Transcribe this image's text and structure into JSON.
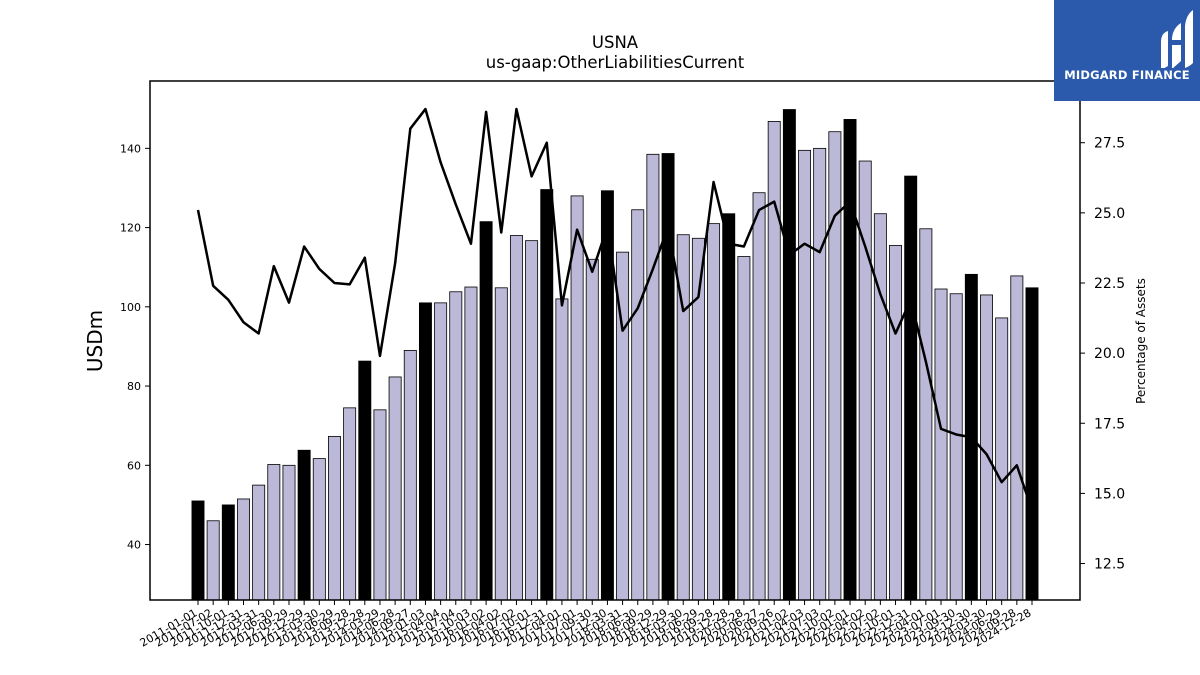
{
  "chart_data": {
    "type": "bar",
    "title": "USNA",
    "subtitle": "us-gaap:OtherLiabilitiesCurrent",
    "ylabel": "USDm",
    "y2label": "Percentage of Assets",
    "ylim": [
      26,
      157
    ],
    "y2lim": [
      11.2,
      29.7
    ],
    "yticks": [
      40,
      60,
      80,
      100,
      120,
      140
    ],
    "y2ticks": [
      12.5,
      15.0,
      17.5,
      20.0,
      22.5,
      25.0,
      27.5
    ],
    "bar_color": "#bcb8d8",
    "highlight_color": "#000000",
    "line_color": "#000000",
    "categories": [
      "2011-01-01",
      "2011-07-02",
      "2011-10-01",
      "2011-12-31",
      "2012-03-31",
      "2012-06-30",
      "2012-09-29",
      "2012-12-29",
      "2013-03-30",
      "2013-06-29",
      "2013-09-28",
      "2013-12-28",
      "2014-03-29",
      "2014-06-28",
      "2014-09-27",
      "2015-01-03",
      "2015-04-04",
      "2015-07-04",
      "2015-10-03",
      "2016-01-02",
      "2016-04-02",
      "2016-07-02",
      "2016-10-01",
      "2016-12-31",
      "2017-04-01",
      "2017-07-01",
      "2017-09-30",
      "2017-12-30",
      "2018-03-31",
      "2018-06-30",
      "2018-09-29",
      "2018-12-29",
      "2019-03-30",
      "2019-06-29",
      "2019-09-28",
      "2019-12-28",
      "2020-03-28",
      "2020-06-27",
      "2020-09-26",
      "2021-01-02",
      "2021-04-03",
      "2021-07-03",
      "2021-10-02",
      "2022-01-01",
      "2022-04-02",
      "2022-07-02",
      "2022-10-01",
      "2022-12-31",
      "2023-04-01",
      "2023-07-01",
      "2023-09-30",
      "2023-12-30",
      "2024-03-30",
      "2024-06-29",
      "2024-09-28",
      "2024-12-28"
    ],
    "tick_labels": [
      "2011-01-01",
      "2011-07-02",
      "2011-10-01",
      "2011-12-31",
      "2012-03-31",
      "2012-06-30",
      "2012-09-29",
      "2012-12-29",
      "2013-03-30",
      "2013-06-29",
      "2013-09-28",
      "2013-12-28",
      "2014-03-29",
      "2014-06-28",
      "2014-09-27",
      "2015-01-03",
      "2015-04-04",
      "2015-07-04",
      "2015-10-03",
      "2016-01-02",
      "2016-04-02",
      "2016-07-02",
      "2016-10-01",
      "2016-12-31",
      "2017-04-01",
      "2017-07-01",
      "2017-09-30",
      "2017-12-30",
      "2018-03-31",
      "2018-06-30",
      "2018-09-29",
      "2018-12-29",
      "2019-03-30",
      "2019-06-29",
      "2019-09-28",
      "2019-12-28",
      "2020-03-28",
      "2020-06-27",
      "2020-09-26",
      "2021-01-02",
      "2021-04-03",
      "2021-07-03",
      "2021-10-02",
      "2022-01-01",
      "2022-04-02",
      "2022-07-02",
      "2022-10-01",
      "2022-12-31",
      "2023-04-01",
      "2023-07-01",
      "2023-09-30",
      "2023-12-30",
      "2024-03-30",
      "2024-06-29",
      "2024-09-28",
      "2024-12-28"
    ],
    "values": [
      51.0,
      46.0,
      50.0,
      51.5,
      55.0,
      60.2,
      60.0,
      63.8,
      61.7,
      67.3,
      74.5,
      86.3,
      74.0,
      82.3,
      89.0,
      101.0,
      101.0,
      103.8,
      105.0,
      121.5,
      104.8,
      118.0,
      116.7,
      129.6,
      102.0,
      128.0,
      112.0,
      129.3,
      113.8,
      124.5,
      138.5,
      138.7,
      118.2,
      117.3,
      121.0,
      123.5,
      112.7,
      128.8,
      146.8,
      149.8,
      139.5,
      140.0,
      144.2,
      147.3,
      136.8,
      123.5,
      115.5,
      133.0,
      119.7,
      104.5,
      103.3,
      108.2,
      103.0,
      97.2,
      107.8,
      104.8
    ],
    "highlight": [
      true,
      false,
      true,
      false,
      false,
      false,
      false,
      true,
      false,
      false,
      false,
      true,
      false,
      false,
      false,
      true,
      false,
      false,
      false,
      true,
      false,
      false,
      false,
      true,
      false,
      false,
      false,
      true,
      false,
      false,
      false,
      true,
      false,
      false,
      false,
      true,
      false,
      false,
      false,
      true,
      false,
      false,
      false,
      true,
      false,
      false,
      false,
      true,
      false,
      false,
      false,
      true,
      false,
      false,
      false,
      true
    ],
    "pct_of_assets": [
      25.1,
      22.4,
      21.9,
      21.1,
      20.7,
      23.1,
      21.8,
      23.8,
      23.0,
      22.5,
      22.45,
      23.4,
      19.9,
      23.2,
      28.0,
      28.7,
      26.8,
      25.3,
      23.9,
      28.6,
      24.3,
      28.7,
      26.3,
      27.5,
      21.7,
      24.4,
      22.9,
      24.5,
      20.8,
      21.6,
      23.0,
      24.5,
      21.5,
      22.0,
      26.1,
      23.9,
      23.8,
      25.1,
      25.4,
      23.5,
      23.9,
      23.6,
      24.9,
      25.4,
      23.8,
      22.1,
      20.7,
      21.9,
      19.7,
      17.3,
      17.1,
      17.0,
      16.4,
      15.4,
      16.0,
      14.4
    ]
  },
  "logo": {
    "text": "MIDGARD FINANCE",
    "icon": "midgard-logo-icon"
  }
}
